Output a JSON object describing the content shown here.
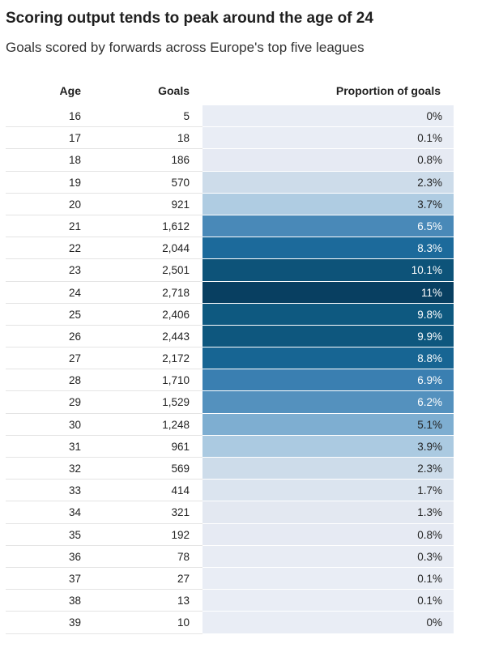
{
  "title": "Scoring output tends to peak around the age of 24",
  "subtitle": "Goals scored by forwards across Europe's top five leagues",
  "chart_data": {
    "type": "table",
    "columns": [
      "Age",
      "Goals",
      "Proportion of goals"
    ],
    "rows": [
      {
        "age": "16",
        "goals": "5",
        "proportion": "0%",
        "value": 0
      },
      {
        "age": "17",
        "goals": "18",
        "proportion": "0.1%",
        "value": 0.1
      },
      {
        "age": "18",
        "goals": "186",
        "proportion": "0.8%",
        "value": 0.8
      },
      {
        "age": "19",
        "goals": "570",
        "proportion": "2.3%",
        "value": 2.3
      },
      {
        "age": "20",
        "goals": "921",
        "proportion": "3.7%",
        "value": 3.7
      },
      {
        "age": "21",
        "goals": "1,612",
        "proportion": "6.5%",
        "value": 6.5
      },
      {
        "age": "22",
        "goals": "2,044",
        "proportion": "8.3%",
        "value": 8.3
      },
      {
        "age": "23",
        "goals": "2,501",
        "proportion": "10.1%",
        "value": 10.1
      },
      {
        "age": "24",
        "goals": "2,718",
        "proportion": "11%",
        "value": 11
      },
      {
        "age": "25",
        "goals": "2,406",
        "proportion": "9.8%",
        "value": 9.8
      },
      {
        "age": "26",
        "goals": "2,443",
        "proportion": "9.9%",
        "value": 9.9
      },
      {
        "age": "27",
        "goals": "2,172",
        "proportion": "8.8%",
        "value": 8.8
      },
      {
        "age": "28",
        "goals": "1,710",
        "proportion": "6.9%",
        "value": 6.9
      },
      {
        "age": "29",
        "goals": "1,529",
        "proportion": "6.2%",
        "value": 6.2
      },
      {
        "age": "30",
        "goals": "1,248",
        "proportion": "5.1%",
        "value": 5.1
      },
      {
        "age": "31",
        "goals": "961",
        "proportion": "3.9%",
        "value": 3.9
      },
      {
        "age": "32",
        "goals": "569",
        "proportion": "2.3%",
        "value": 2.3
      },
      {
        "age": "33",
        "goals": "414",
        "proportion": "1.7%",
        "value": 1.7
      },
      {
        "age": "34",
        "goals": "321",
        "proportion": "1.3%",
        "value": 1.3
      },
      {
        "age": "35",
        "goals": "192",
        "proportion": "0.8%",
        "value": 0.8
      },
      {
        "age": "36",
        "goals": "78",
        "proportion": "0.3%",
        "value": 0.3
      },
      {
        "age": "37",
        "goals": "27",
        "proportion": "0.1%",
        "value": 0.1
      },
      {
        "age": "38",
        "goals": "13",
        "proportion": "0.1%",
        "value": 0.1
      },
      {
        "age": "39",
        "goals": "10",
        "proportion": "0%",
        "value": 0
      }
    ],
    "color_scale": {
      "min": 0,
      "max": 11,
      "colors": [
        "#e9edf5",
        "#e3e8f1",
        "#c2d6e7",
        "#a6c8e0",
        "#6ea4cb",
        "#3b7fb1",
        "#1c6b9c",
        "#0f5d85",
        "#083f61"
      ]
    }
  }
}
